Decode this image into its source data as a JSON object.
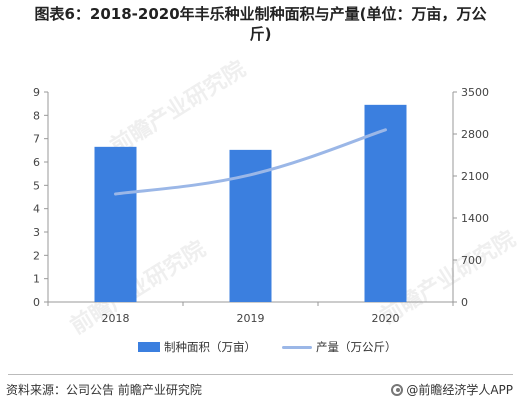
{
  "title_line1": "图表6：2018-2020年丰乐种业制种面积与产量(单位：万亩，万公",
  "title_line2": "斤)",
  "chart_data": {
    "type": "bar",
    "categories": [
      "2018",
      "2019",
      "2020"
    ],
    "series": [
      {
        "name": "制种面积（万亩）",
        "type": "bar",
        "axis": "left",
        "values": [
          6.65,
          6.52,
          8.45
        ],
        "color": "#3b7fdf"
      },
      {
        "name": "产量（万公斤）",
        "type": "line",
        "axis": "right",
        "values": [
          1800,
          2120,
          2870
        ],
        "color": "#9bb7e7"
      }
    ],
    "y_left": {
      "min": 0,
      "max": 9,
      "ticks": [
        "0",
        "1",
        "2",
        "3",
        "4",
        "5",
        "6",
        "7",
        "8",
        "9"
      ]
    },
    "y_right": {
      "min": 0,
      "max": 3500,
      "ticks": [
        "0",
        "700",
        "1400",
        "2100",
        "2800",
        "3500"
      ]
    },
    "legend_position": "bottom",
    "grid": false
  },
  "legend": {
    "bar_label": "制种面积（万亩）",
    "line_label": "产量（万公斤）"
  },
  "footer": {
    "source": "资料来源：公司公告 前瞻产业研究院",
    "brand": "@前瞻经济学人APP"
  },
  "watermark": "前瞻产业研究院"
}
